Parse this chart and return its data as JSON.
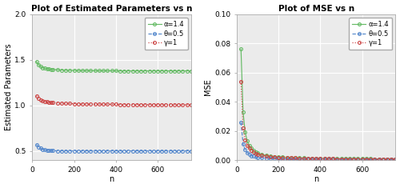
{
  "left_title": "Plot of Estimated Parameters vs n",
  "right_title": "Plot of MSE vs n",
  "xlabel": "n",
  "left_ylabel": "Estimated Parameters",
  "right_ylabel": "MSE",
  "n_values": [
    20,
    30,
    40,
    50,
    60,
    70,
    80,
    90,
    100,
    120,
    140,
    160,
    180,
    200,
    220,
    240,
    260,
    280,
    300,
    320,
    340,
    360,
    380,
    400,
    420,
    440,
    460,
    480,
    500,
    520,
    540,
    560,
    580,
    600,
    620,
    640,
    660,
    680,
    700,
    720,
    740,
    760
  ],
  "mle_alpha": [
    1.48,
    1.445,
    1.425,
    1.413,
    1.407,
    1.402,
    1.398,
    1.395,
    1.393,
    1.39,
    1.387,
    1.385,
    1.384,
    1.383,
    1.382,
    1.381,
    1.381,
    1.38,
    1.38,
    1.379,
    1.379,
    1.379,
    1.379,
    1.379,
    1.378,
    1.378,
    1.378,
    1.378,
    1.378,
    1.378,
    1.378,
    1.378,
    1.378,
    1.378,
    1.378,
    1.378,
    1.378,
    1.378,
    1.378,
    1.378,
    1.378,
    1.378
  ],
  "mle_theta": [
    0.57,
    0.545,
    0.528,
    0.518,
    0.512,
    0.508,
    0.505,
    0.503,
    0.502,
    0.5,
    0.5,
    0.5,
    0.5,
    0.5,
    0.5,
    0.5,
    0.5,
    0.5,
    0.5,
    0.5,
    0.5,
    0.5,
    0.5,
    0.5,
    0.5,
    0.5,
    0.5,
    0.5,
    0.5,
    0.5,
    0.5,
    0.5,
    0.5,
    0.5,
    0.5,
    0.5,
    0.5,
    0.5,
    0.5,
    0.5,
    0.5,
    0.5
  ],
  "mle_gamma": [
    1.105,
    1.075,
    1.06,
    1.05,
    1.044,
    1.039,
    1.036,
    1.033,
    1.031,
    1.027,
    1.024,
    1.022,
    1.02,
    1.018,
    1.017,
    1.016,
    1.015,
    1.014,
    1.013,
    1.013,
    1.012,
    1.012,
    1.011,
    1.011,
    1.01,
    1.01,
    1.01,
    1.009,
    1.009,
    1.009,
    1.008,
    1.008,
    1.008,
    1.008,
    1.007,
    1.007,
    1.007,
    1.007,
    1.007,
    1.006,
    1.006,
    1.006
  ],
  "mse_alpha": [
    0.076,
    0.033,
    0.019,
    0.013,
    0.01,
    0.008,
    0.0065,
    0.0055,
    0.0048,
    0.0038,
    0.0032,
    0.0027,
    0.0024,
    0.0022,
    0.002,
    0.0018,
    0.0017,
    0.0016,
    0.0015,
    0.0014,
    0.0013,
    0.0013,
    0.0012,
    0.0012,
    0.0011,
    0.0011,
    0.0011,
    0.001,
    0.001,
    0.001,
    0.001,
    0.0009,
    0.0009,
    0.0009,
    0.0009,
    0.0009,
    0.0008,
    0.0008,
    0.0008,
    0.0008,
    0.0008,
    0.0008
  ],
  "mse_theta": [
    0.026,
    0.011,
    0.007,
    0.005,
    0.004,
    0.003,
    0.0026,
    0.0022,
    0.0019,
    0.0016,
    0.0013,
    0.0011,
    0.001,
    0.0009,
    0.0008,
    0.0008,
    0.0007,
    0.0007,
    0.0006,
    0.0006,
    0.0006,
    0.0005,
    0.0005,
    0.0005,
    0.0005,
    0.0005,
    0.0004,
    0.0004,
    0.0004,
    0.0004,
    0.0004,
    0.0004,
    0.0004,
    0.0003,
    0.0003,
    0.0003,
    0.0003,
    0.0003,
    0.0003,
    0.0003,
    0.0003,
    0.0003
  ],
  "mse_gamma": [
    0.054,
    0.022,
    0.014,
    0.01,
    0.008,
    0.0065,
    0.0054,
    0.0046,
    0.004,
    0.0032,
    0.0027,
    0.0023,
    0.0021,
    0.0019,
    0.0017,
    0.0016,
    0.0015,
    0.0014,
    0.0013,
    0.0012,
    0.0011,
    0.0011,
    0.001,
    0.001,
    0.0009,
    0.0009,
    0.0009,
    0.0008,
    0.0008,
    0.0008,
    0.0007,
    0.0007,
    0.0007,
    0.0007,
    0.0007,
    0.0006,
    0.0006,
    0.0006,
    0.0006,
    0.0006,
    0.0006,
    0.0006
  ],
  "color_alpha": "#66bb66",
  "color_theta": "#5588cc",
  "color_gamma": "#cc4444",
  "left_ylim": [
    0.4,
    2.0
  ],
  "right_ylim": [
    0.0,
    0.1
  ],
  "left_yticks": [
    0.5,
    1.0,
    1.5,
    2.0
  ],
  "right_yticks": [
    0.0,
    0.02,
    0.04,
    0.06,
    0.08,
    0.1
  ],
  "xticks": [
    0,
    200,
    400,
    600
  ],
  "xlim": [
    0,
    760
  ],
  "legend_alpha": "α=1.4",
  "legend_theta": "θ=0.5",
  "legend_gamma": "γ=1",
  "panel_bg": "#ebebeb",
  "fig_bg": "white",
  "grid_color": "white",
  "marker_size": 2.8,
  "line_width": 0.85,
  "title_fontsize": 7.5,
  "label_fontsize": 7.0,
  "tick_fontsize": 6.5,
  "legend_fontsize": 6.0,
  "spine_color": "#aaaaaa"
}
